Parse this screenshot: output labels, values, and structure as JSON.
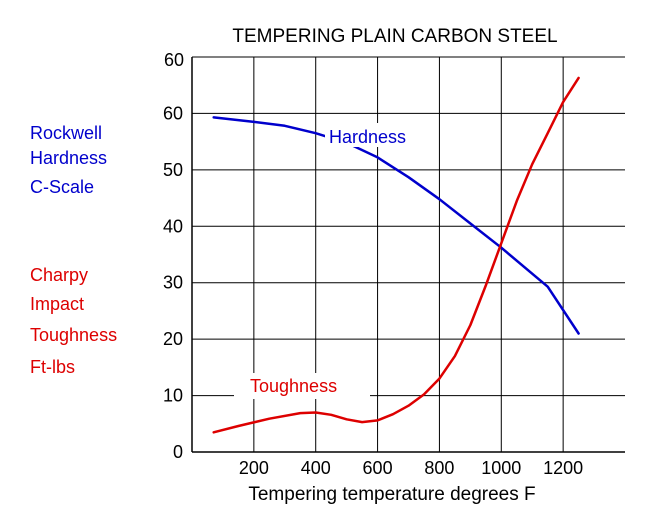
{
  "colors": {
    "hardness": "#0000cc",
    "toughness": "#dd0000",
    "grid": "#000000",
    "text": "#000000"
  },
  "chart_data": {
    "type": "line",
    "title": "TEMPERING PLAIN CARBON STEEL",
    "xlabel": "Tempering temperature degrees F",
    "ylabel": "",
    "xlim": [
      0,
      1400
    ],
    "ylim": [
      0,
      70
    ],
    "x_ticks": [
      200,
      400,
      600,
      800,
      1000,
      1200
    ],
    "y_ticks": [
      0,
      10,
      20,
      30,
      40,
      50,
      60
    ],
    "top_axis_label": "60",
    "grid": true,
    "left_legend": {
      "hardness_lines": [
        "Rockwell",
        "Hardness",
        "C-Scale"
      ],
      "toughness_lines": [
        "Charpy",
        "Impact",
        "Toughness",
        "Ft-lbs"
      ]
    },
    "series": [
      {
        "name": "Hardness",
        "color": "#0000cc",
        "x": [
          70,
          200,
          300,
          400,
          500,
          600,
          700,
          800,
          900,
          1000,
          1100,
          1150,
          1250
        ],
        "y": [
          59.3,
          58.5,
          57.8,
          56.5,
          54.8,
          52.2,
          48.7,
          44.8,
          40.5,
          36.2,
          31.6,
          29.3,
          21
        ]
      },
      {
        "name": "Toughness",
        "color": "#dd0000",
        "x": [
          70,
          150,
          250,
          350,
          400,
          450,
          500,
          550,
          600,
          650,
          700,
          750,
          800,
          850,
          900,
          950,
          1000,
          1050,
          1100,
          1150,
          1200,
          1250
        ],
        "y": [
          3.5,
          4.6,
          5.9,
          6.9,
          7,
          6.6,
          5.8,
          5.3,
          5.6,
          6.7,
          8.2,
          10.2,
          13,
          17,
          22.5,
          29.5,
          37,
          44.5,
          51,
          56.5,
          62,
          66.3
        ]
      }
    ],
    "annotations": [
      {
        "text": "Hardness",
        "series": "Hardness"
      },
      {
        "text": "Toughness",
        "series": "Toughness"
      }
    ]
  }
}
